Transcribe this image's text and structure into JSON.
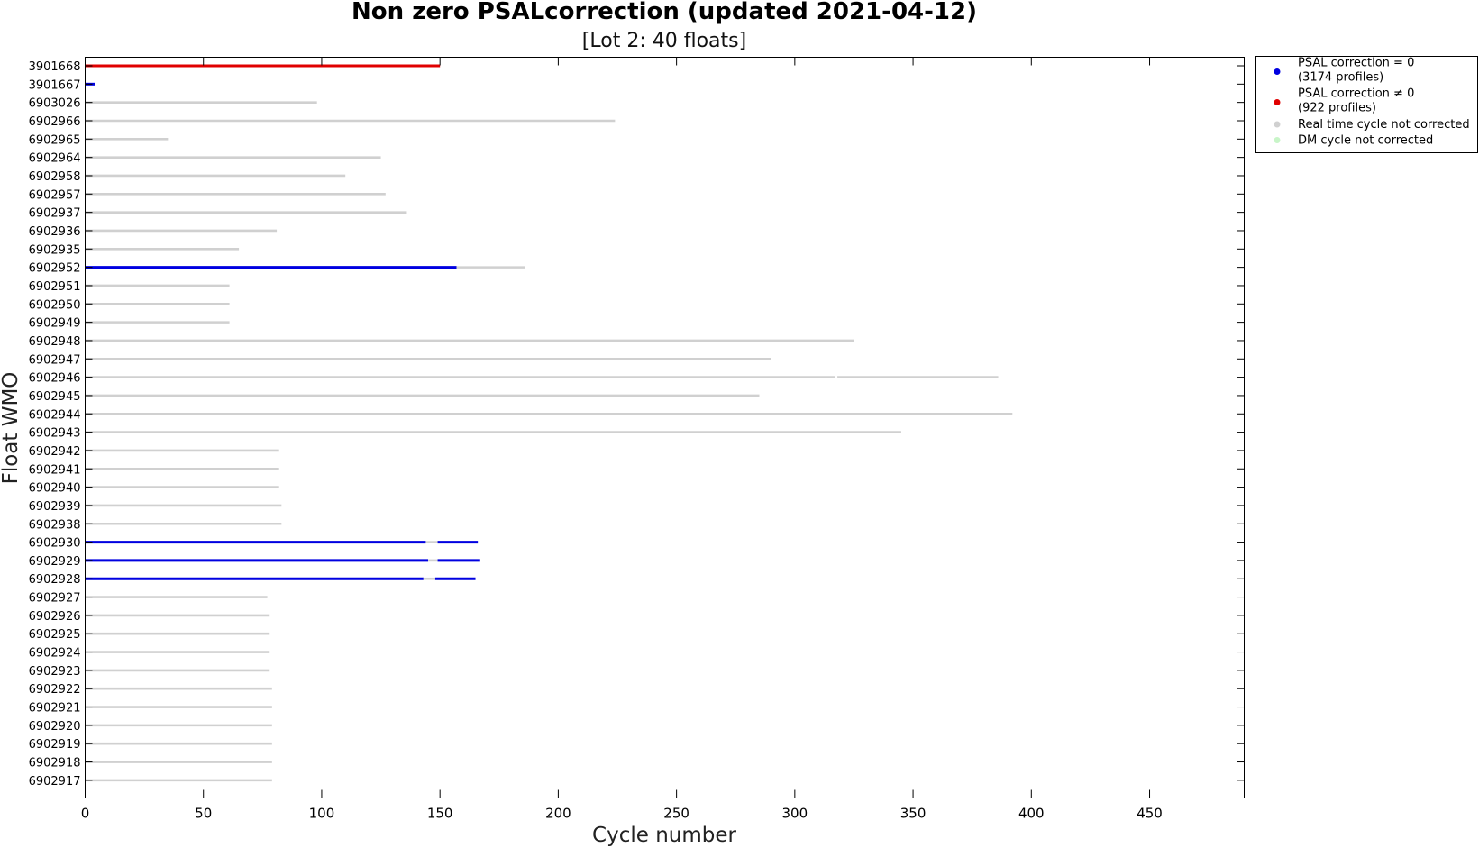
{
  "chart_data": {
    "type": "gantt",
    "title": "Non zero PSALcorrection (updated 2021-04-12)",
    "subtitle": "[Lot 2: 40 floats]",
    "xlabel": "Cycle number",
    "ylabel": "Float WMO",
    "xlim": [
      0,
      490
    ],
    "xticks": [
      0,
      50,
      100,
      150,
      200,
      250,
      300,
      350,
      400,
      450
    ],
    "colors": {
      "corr_zero": "#0000e0",
      "corr_nonzero": "#e00000",
      "rt": "#d0d0d0",
      "dm": "#c8f5c8"
    },
    "legend": {
      "position": "outside-top-right",
      "entries": [
        {
          "key": "corr_zero",
          "line1": "PSAL correction = 0",
          "line2": "(3174 profiles)"
        },
        {
          "key": "corr_nonzero",
          "line1": "PSAL correction ≠ 0",
          "line2": "(922 profiles)"
        },
        {
          "key": "rt",
          "line1": "Real time cycle not corrected",
          "line2": ""
        },
        {
          "key": "dm",
          "line1": "DM cycle not corrected",
          "line2": ""
        }
      ]
    },
    "floats": [
      {
        "wmo": "3901668",
        "segments": [
          {
            "type": "corr_nonzero",
            "start": 0,
            "end": 150
          }
        ]
      },
      {
        "wmo": "3901667",
        "segments": [
          {
            "type": "corr_zero",
            "start": 0,
            "end": 4
          }
        ]
      },
      {
        "wmo": "6903026",
        "segments": [
          {
            "type": "rt",
            "start": 0,
            "end": 98
          }
        ]
      },
      {
        "wmo": "6902966",
        "segments": [
          {
            "type": "rt",
            "start": 0,
            "end": 224
          }
        ]
      },
      {
        "wmo": "6902965",
        "segments": [
          {
            "type": "rt",
            "start": 0,
            "end": 35
          }
        ]
      },
      {
        "wmo": "6902964",
        "segments": [
          {
            "type": "rt",
            "start": 0,
            "end": 125
          }
        ]
      },
      {
        "wmo": "6902958",
        "segments": [
          {
            "type": "rt",
            "start": 0,
            "end": 110
          }
        ]
      },
      {
        "wmo": "6902957",
        "segments": [
          {
            "type": "rt",
            "start": 0,
            "end": 127
          }
        ]
      },
      {
        "wmo": "6902937",
        "segments": [
          {
            "type": "rt",
            "start": 0,
            "end": 136
          }
        ]
      },
      {
        "wmo": "6902936",
        "segments": [
          {
            "type": "rt",
            "start": 0,
            "end": 81
          }
        ]
      },
      {
        "wmo": "6902935",
        "segments": [
          {
            "type": "rt",
            "start": 0,
            "end": 65
          }
        ]
      },
      {
        "wmo": "6902952",
        "segments": [
          {
            "type": "corr_zero",
            "start": 0,
            "end": 157
          },
          {
            "type": "rt",
            "start": 157,
            "end": 186
          }
        ]
      },
      {
        "wmo": "6902951",
        "segments": [
          {
            "type": "rt",
            "start": 0,
            "end": 61
          }
        ]
      },
      {
        "wmo": "6902950",
        "segments": [
          {
            "type": "rt",
            "start": 0,
            "end": 61
          }
        ]
      },
      {
        "wmo": "6902949",
        "segments": [
          {
            "type": "rt",
            "start": 0,
            "end": 61
          }
        ]
      },
      {
        "wmo": "6902948",
        "segments": [
          {
            "type": "rt",
            "start": 0,
            "end": 325
          }
        ]
      },
      {
        "wmo": "6902947",
        "segments": [
          {
            "type": "rt",
            "start": 0,
            "end": 290
          }
        ]
      },
      {
        "wmo": "6902946",
        "segments": [
          {
            "type": "rt",
            "start": 0,
            "end": 317
          },
          {
            "type": "rt",
            "start": 318,
            "end": 386
          }
        ]
      },
      {
        "wmo": "6902945",
        "segments": [
          {
            "type": "rt",
            "start": 0,
            "end": 285
          }
        ]
      },
      {
        "wmo": "6902944",
        "segments": [
          {
            "type": "rt",
            "start": 0,
            "end": 392
          }
        ]
      },
      {
        "wmo": "6902943",
        "segments": [
          {
            "type": "rt",
            "start": 0,
            "end": 345
          }
        ]
      },
      {
        "wmo": "6902942",
        "segments": [
          {
            "type": "rt",
            "start": 0,
            "end": 82
          }
        ]
      },
      {
        "wmo": "6902941",
        "segments": [
          {
            "type": "rt",
            "start": 0,
            "end": 82
          }
        ]
      },
      {
        "wmo": "6902940",
        "segments": [
          {
            "type": "rt",
            "start": 0,
            "end": 82
          }
        ]
      },
      {
        "wmo": "6902939",
        "segments": [
          {
            "type": "rt",
            "start": 0,
            "end": 83
          }
        ]
      },
      {
        "wmo": "6902938",
        "segments": [
          {
            "type": "rt",
            "start": 0,
            "end": 83
          }
        ]
      },
      {
        "wmo": "6902930",
        "segments": [
          {
            "type": "corr_zero",
            "start": 0,
            "end": 144
          },
          {
            "type": "rt",
            "start": 144,
            "end": 149
          },
          {
            "type": "corr_zero",
            "start": 149,
            "end": 166
          }
        ]
      },
      {
        "wmo": "6902929",
        "segments": [
          {
            "type": "corr_zero",
            "start": 0,
            "end": 145
          },
          {
            "type": "rt",
            "start": 145,
            "end": 149
          },
          {
            "type": "corr_zero",
            "start": 149,
            "end": 167
          }
        ]
      },
      {
        "wmo": "6902928",
        "segments": [
          {
            "type": "corr_zero",
            "start": 0,
            "end": 143
          },
          {
            "type": "rt",
            "start": 143,
            "end": 148
          },
          {
            "type": "corr_zero",
            "start": 148,
            "end": 165
          }
        ]
      },
      {
        "wmo": "6902927",
        "segments": [
          {
            "type": "rt",
            "start": 0,
            "end": 77
          }
        ]
      },
      {
        "wmo": "6902926",
        "segments": [
          {
            "type": "rt",
            "start": 0,
            "end": 78
          }
        ]
      },
      {
        "wmo": "6902925",
        "segments": [
          {
            "type": "rt",
            "start": 0,
            "end": 78
          }
        ]
      },
      {
        "wmo": "6902924",
        "segments": [
          {
            "type": "rt",
            "start": 0,
            "end": 78
          }
        ]
      },
      {
        "wmo": "6902923",
        "segments": [
          {
            "type": "rt",
            "start": 0,
            "end": 78
          }
        ]
      },
      {
        "wmo": "6902922",
        "segments": [
          {
            "type": "rt",
            "start": 0,
            "end": 79
          }
        ]
      },
      {
        "wmo": "6902921",
        "segments": [
          {
            "type": "rt",
            "start": 0,
            "end": 79
          }
        ]
      },
      {
        "wmo": "6902920",
        "segments": [
          {
            "type": "rt",
            "start": 0,
            "end": 79
          }
        ]
      },
      {
        "wmo": "6902919",
        "segments": [
          {
            "type": "rt",
            "start": 0,
            "end": 79
          }
        ]
      },
      {
        "wmo": "6902918",
        "segments": [
          {
            "type": "rt",
            "start": 0,
            "end": 79
          }
        ]
      },
      {
        "wmo": "6902917",
        "segments": [
          {
            "type": "rt",
            "start": 0,
            "end": 79
          }
        ]
      }
    ]
  }
}
